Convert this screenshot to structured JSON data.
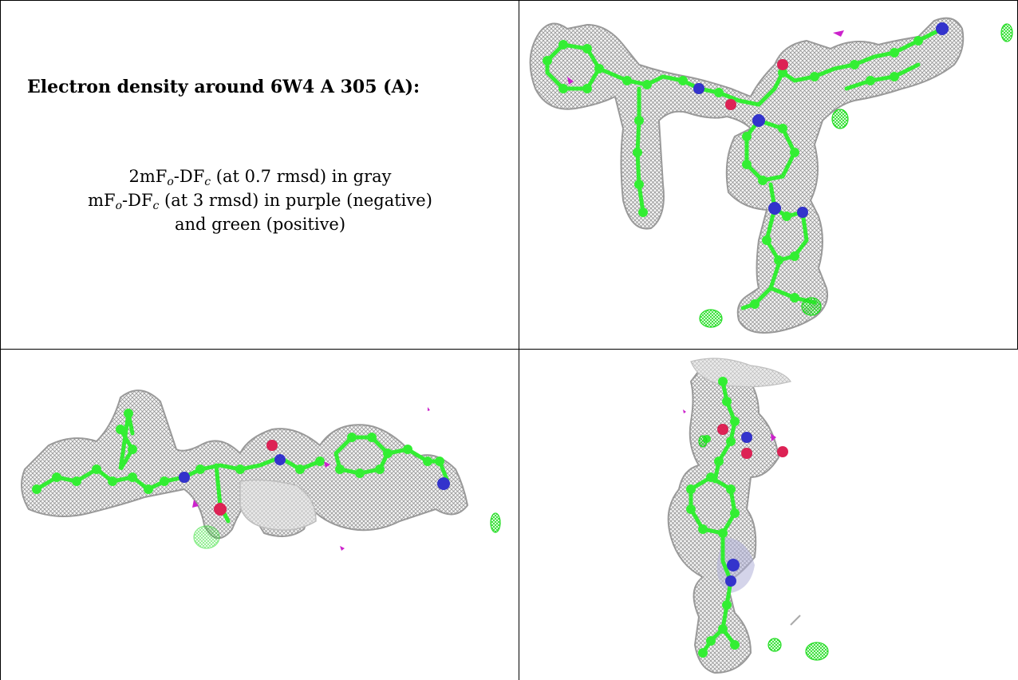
{
  "caption": {
    "title": "Electron density around 6W4 A 305 (A):",
    "line1": {
      "prefix": "2mF",
      "sub1": "o",
      "mid": "-DF",
      "sub2": "c",
      "suffix": " (at 0.7 rmsd) in gray"
    },
    "line2": {
      "prefix": "mF",
      "sub1": "o",
      "mid": "-DF",
      "sub2": "c",
      "suffix": " (at 3 rmsd) in purple (negative)"
    },
    "line3": "and green (positive)"
  },
  "colors": {
    "mesh_gray": "#9a9a9a",
    "carbon_green": "#33ee33",
    "nitrogen_blue": "#3333cc",
    "oxygen_red": "#dd2255",
    "negative_purple": "#cc22cc",
    "positive_green": "#22dd22",
    "grid_line": "#000000"
  },
  "panels": [
    {
      "name": "view-top-right",
      "icon": "ligand-density-view-1"
    },
    {
      "name": "view-bottom-left",
      "icon": "ligand-density-view-2"
    },
    {
      "name": "view-bottom-right",
      "icon": "ligand-density-view-3"
    }
  ]
}
